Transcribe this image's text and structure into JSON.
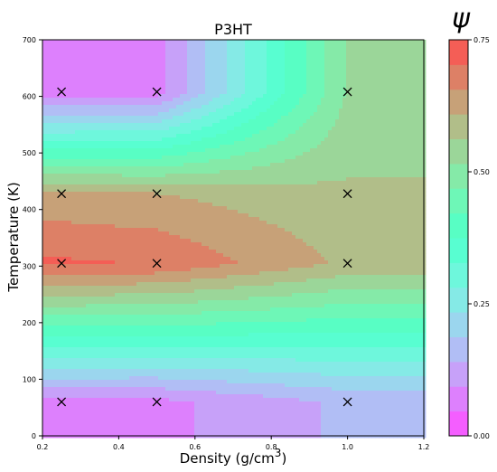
{
  "chart_data": {
    "type": "heatmap",
    "subtype": "filled-contour",
    "title": "P3HT",
    "xlabel": "Density (g/cm",
    "xlabel_sup": "3",
    "ylabel": "Temperature (K)",
    "colorbar_label": "ψ",
    "colormap": "rainbow",
    "xlim": [
      0.2,
      1.2
    ],
    "ylim": [
      0,
      700
    ],
    "x_ticks": [
      "0.2",
      "0.4",
      "0.6",
      "0.8",
      "1.0",
      "1.2"
    ],
    "y_ticks": [
      "0",
      "100",
      "200",
      "300",
      "400",
      "500",
      "600",
      "700"
    ],
    "colorbar_range": [
      0.0,
      0.75
    ],
    "colorbar_ticks": [
      "0.00",
      "0.25",
      "0.50",
      "0.75"
    ],
    "levels": 16,
    "sample_points": [
      {
        "x": 0.25,
        "y": 60
      },
      {
        "x": 0.5,
        "y": 60
      },
      {
        "x": 1.0,
        "y": 60
      },
      {
        "x": 0.25,
        "y": 305
      },
      {
        "x": 0.5,
        "y": 305
      },
      {
        "x": 1.0,
        "y": 305
      },
      {
        "x": 0.25,
        "y": 428
      },
      {
        "x": 0.5,
        "y": 428
      },
      {
        "x": 1.0,
        "y": 428
      },
      {
        "x": 0.25,
        "y": 608
      },
      {
        "x": 0.5,
        "y": 608
      },
      {
        "x": 1.0,
        "y": 608
      }
    ],
    "grid_x": [
      0.25,
      0.5,
      1.0
    ],
    "grid_y": [
      60,
      305,
      428,
      608
    ],
    "grid_values": [
      [
        0.08,
        0.08,
        0.15
      ],
      [
        0.71,
        0.7,
        0.6
      ],
      [
        0.62,
        0.61,
        0.57
      ],
      [
        0.06,
        0.07,
        0.52
      ]
    ]
  }
}
